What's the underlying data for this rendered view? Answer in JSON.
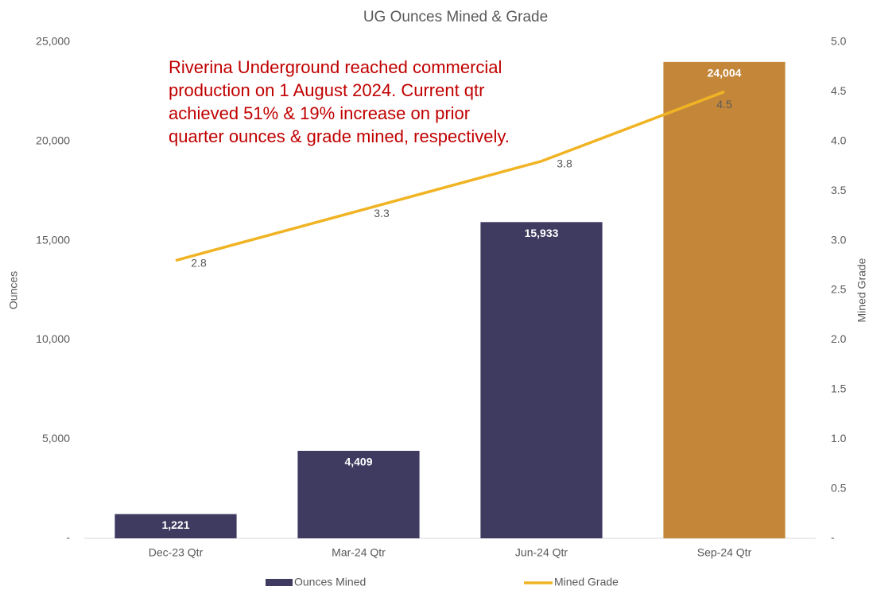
{
  "chart_data": {
    "type": "bar-line",
    "title": "UG Ounces Mined & Grade",
    "annotation": [
      "Riverina Underground reached commercial",
      "production on 1 August 2024. Current qtr",
      "achieved 51% & 19% increase on prior",
      "quarter ounces & grade mined, respectively."
    ],
    "categories": [
      "Dec-23 Qtr",
      "Mar-24 Qtr",
      "Jun-24 Qtr",
      "Sep-24 Qtr"
    ],
    "series": [
      {
        "name": "Ounces Mined",
        "type": "bar",
        "color": "#3e3a60",
        "colors": [
          "#3e3a60",
          "#3e3a60",
          "#3e3a60",
          "#c4873a"
        ],
        "values": [
          1221,
          4409,
          15933,
          24004
        ],
        "value_labels": [
          "1,221",
          "4,409",
          "15,933",
          "24,004"
        ]
      },
      {
        "name": "Mined Grade",
        "type": "line",
        "axis": "y2",
        "color": "#f0b323",
        "values": [
          2.8,
          3.3,
          3.8,
          4.5
        ]
      }
    ],
    "ylabel": "Ounces",
    "y2label": "Mined Grade",
    "ylim": [
      0,
      25000
    ],
    "yticks": [
      {
        "value": 0,
        "label": "-"
      },
      {
        "value": 5000,
        "label": "5,000"
      },
      {
        "value": 10000,
        "label": "10,000"
      },
      {
        "value": 15000,
        "label": "15,000"
      },
      {
        "value": 20000,
        "label": "20,000"
      },
      {
        "value": 25000,
        "label": "25,000"
      }
    ],
    "y2lim": [
      0,
      5
    ],
    "y2ticks": [
      {
        "value": 0,
        "label": "-"
      },
      0.5,
      {
        "value": 1,
        "label": "1.0"
      },
      1.5,
      {
        "value": 2,
        "label": "2.0"
      },
      2.5,
      {
        "value": 3,
        "label": "3.0"
      },
      3.5,
      {
        "value": 4,
        "label": "4.0"
      },
      4.5,
      {
        "value": 5,
        "label": "5.0"
      }
    ],
    "legend": "bottom"
  }
}
